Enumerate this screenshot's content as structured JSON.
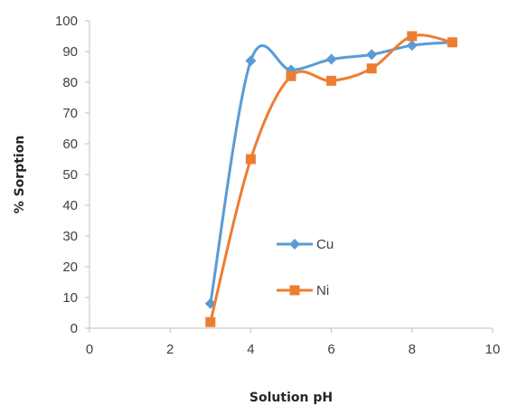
{
  "chart_data": {
    "type": "line",
    "title": "",
    "xlabel": "Solution pH",
    "ylabel": "% Sorption",
    "xlim": [
      0,
      10
    ],
    "ylim": [
      0,
      100
    ],
    "x_ticks": [
      0,
      2,
      4,
      6,
      8,
      10
    ],
    "y_ticks": [
      0,
      10,
      20,
      30,
      40,
      50,
      60,
      70,
      80,
      90,
      100
    ],
    "grid": false,
    "smoothed": true,
    "legend_position": "center-right",
    "series": [
      {
        "name": "Cu",
        "color": "#5B9BD5",
        "marker": "diamond",
        "x": [
          3,
          4,
          5,
          6,
          7,
          8,
          9
        ],
        "y": [
          8,
          87,
          84,
          87.5,
          89,
          92,
          93
        ]
      },
      {
        "name": "Ni",
        "color": "#ED7D31",
        "marker": "square",
        "x": [
          3,
          4,
          5,
          6,
          7,
          8,
          9
        ],
        "y": [
          2,
          55,
          82,
          80.5,
          84.5,
          95,
          93
        ]
      }
    ]
  }
}
